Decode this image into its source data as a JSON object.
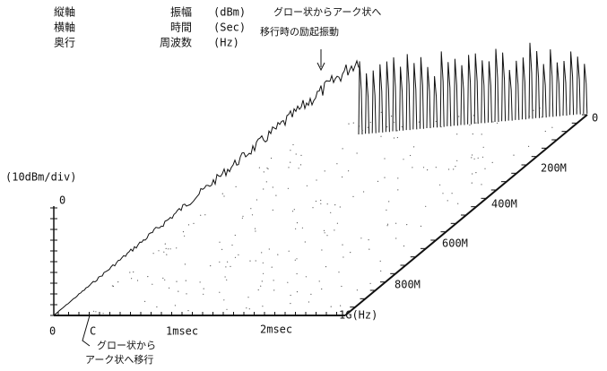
{
  "legend": {
    "rows": [
      [
        "縦軸",
        "振幅",
        "(dBm)"
      ],
      [
        "横軸",
        "時間",
        "(Sec)"
      ],
      [
        "奥行",
        "周波数",
        "(Hz)"
      ]
    ]
  },
  "annotations": {
    "top": [
      "グロー状からアーク状へ",
      "移行時の励起振動"
    ],
    "bottom": [
      "グロー状から",
      "アーク状へ移行"
    ],
    "marker": "C"
  },
  "axes": {
    "y_unit": "(10dBm/div)",
    "y_zero": "0",
    "x_ticks": [
      "0",
      "1msec",
      "2msec"
    ],
    "depth_ticks": [
      "0",
      "200M",
      "400M",
      "600M",
      "800M",
      "1G(Hz)"
    ]
  }
}
